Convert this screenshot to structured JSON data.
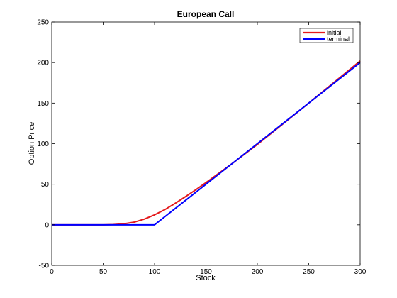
{
  "chart_data": {
    "type": "line",
    "title": "European Call",
    "xlabel": "Stock",
    "ylabel": "Option Price",
    "xlim": [
      0,
      300
    ],
    "ylim": [
      -50,
      250
    ],
    "xticks": [
      0,
      50,
      100,
      150,
      200,
      250,
      300
    ],
    "yticks": [
      -50,
      0,
      50,
      100,
      150,
      200,
      250
    ],
    "grid": false,
    "legend_position": "top-right",
    "series": [
      {
        "name": "initial",
        "color": "#e41a1c",
        "x": [
          0,
          50,
          60,
          70,
          80,
          90,
          100,
          110,
          120,
          130,
          140,
          150,
          175,
          200,
          250,
          300
        ],
        "y": [
          0,
          0,
          0.3,
          1.2,
          3.2,
          7.0,
          12.3,
          18.7,
          26.4,
          34.6,
          43.1,
          52,
          75,
          99,
          150,
          202
        ]
      },
      {
        "name": "terminal",
        "color": "#0000ff",
        "x": [
          0,
          100,
          150,
          200,
          250,
          300
        ],
        "y": [
          0,
          0,
          50,
          100,
          150,
          200
        ]
      }
    ]
  }
}
